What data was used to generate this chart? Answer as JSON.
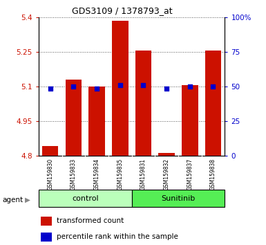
{
  "title": "GDS3109 / 1378793_at",
  "samples": [
    "GSM159830",
    "GSM159833",
    "GSM159834",
    "GSM159835",
    "GSM159831",
    "GSM159832",
    "GSM159837",
    "GSM159838"
  ],
  "bar_values": [
    4.84,
    5.13,
    5.1,
    5.385,
    5.255,
    4.81,
    5.105,
    5.255
  ],
  "bar_base": 4.8,
  "blue_values": [
    5.09,
    5.1,
    5.09,
    5.105,
    5.105,
    5.09,
    5.1,
    5.1
  ],
  "ylim": [
    4.8,
    5.4
  ],
  "yticks_left": [
    4.8,
    4.95,
    5.1,
    5.25,
    5.4
  ],
  "yticks_right": [
    0,
    25,
    50,
    75,
    100
  ],
  "ytick_labels_right": [
    "0",
    "25",
    "50",
    "75",
    "100%"
  ],
  "bar_color": "#cc1100",
  "blue_color": "#0000cc",
  "control_label": "control",
  "sunitinib_label": "Sunitinib",
  "agent_label": "agent",
  "legend_bar": "transformed count",
  "legend_dot": "percentile rank within the sample",
  "control_color": "#bbffbb",
  "sunitinib_color": "#55ee55",
  "left_tick_color": "#cc1100",
  "right_tick_color": "#0000cc",
  "grid_color": "#555555",
  "tick_area_bg": "#cccccc",
  "bar_width": 0.7
}
